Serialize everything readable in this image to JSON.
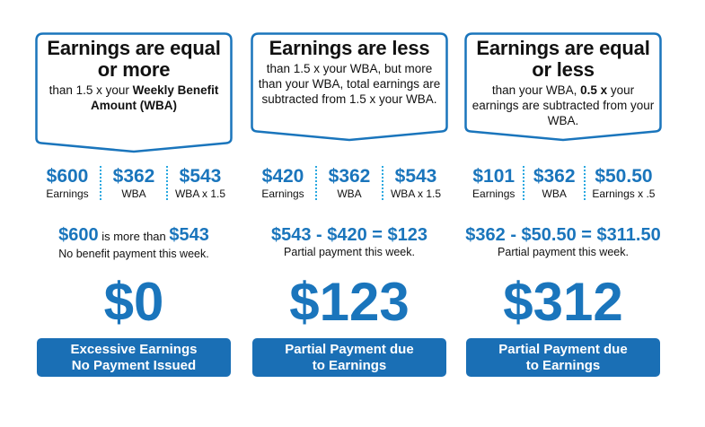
{
  "accent_color": "#1a75bc",
  "button_color": "#1a6fb5",
  "panels": [
    {
      "title": "Earnings are equal or more",
      "subtitle_plain": "than 1.5 x your ",
      "subtitle_bold": "Weekly Benefit Amount (WBA)",
      "subtitle_rest": "",
      "values": [
        {
          "amount": "$600",
          "label": "Earnings"
        },
        {
          "amount": "$362",
          "label": "WBA"
        },
        {
          "amount": "$543",
          "label": "WBA x 1.5"
        }
      ],
      "statement_a": "$600",
      "statement_mid": " is more than ",
      "statement_b": "$543",
      "note": "No benefit payment this week.",
      "result": "$0",
      "button_line1": "Excessive Earnings",
      "button_line2": "No Payment Issued"
    },
    {
      "title": "Earnings are less",
      "subtitle_plain": "than 1.5 x your WBA, but more than your WBA, total earnings are subtracted from 1.5 x your WBA.",
      "values": [
        {
          "amount": "$420",
          "label": "Earnings"
        },
        {
          "amount": "$362",
          "label": "WBA"
        },
        {
          "amount": "$543",
          "label": "WBA x 1.5"
        }
      ],
      "equation": "$543 - $420 = $123",
      "note": "Partial payment this week.",
      "result": "$123",
      "button_line1": "Partial Payment due",
      "button_line2": "to Earnings"
    },
    {
      "title": "Earnings are equal or less",
      "subtitle_plain": "than your WBA, ",
      "subtitle_bold": "0.5 x",
      "subtitle_rest": " your earnings are subtracted from your WBA.",
      "values": [
        {
          "amount": "$101",
          "label": "Earnings"
        },
        {
          "amount": "$362",
          "label": "WBA"
        },
        {
          "amount": "$50.50",
          "label": "Earnings x .5"
        }
      ],
      "equation": "$362 - $50.50 = $311.50",
      "note": "Partial payment this week.",
      "result": "$312",
      "button_line1": "Partial Payment due",
      "button_line2": "to Earnings"
    }
  ]
}
